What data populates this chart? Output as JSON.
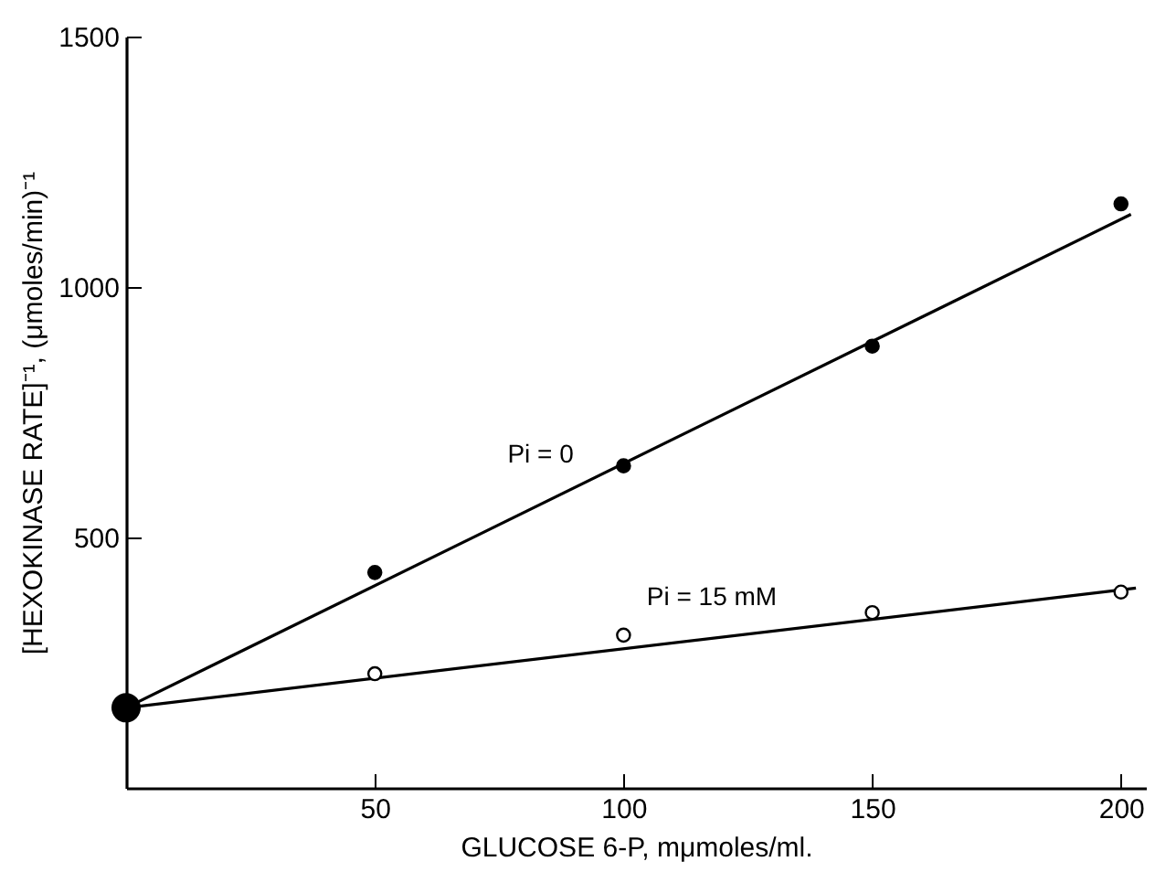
{
  "chart_data": {
    "type": "scatter",
    "xlabel": "GLUCOSE 6-P, mμmoles/ml.",
    "ylabel": "[HEXOKINASE RATE]⁻¹, (μmoles/min)⁻¹",
    "xlim": [
      0,
      205
    ],
    "ylim": [
      0,
      1500
    ],
    "xticks": [
      50,
      100,
      150,
      200
    ],
    "yticks": [
      500,
      {
        "value": 1000,
        "label": "1000"
      },
      {
        "value": 1500,
        "label": "1500"
      }
    ],
    "grid": false,
    "legend": false,
    "series": [
      {
        "type": "line",
        "name": "Pi = 0",
        "color": "#000000",
        "marker": "none",
        "x": [
          0,
          202
        ],
        "values": [
          160,
          1145
        ]
      },
      {
        "type": "line",
        "name": "Pi = 15 mM",
        "color": "#000000",
        "marker": "none",
        "x": [
          0,
          203
        ],
        "values": [
          160,
          399
        ]
      },
      {
        "color": "#000000",
        "marker": "circle",
        "x": [
          50,
          100,
          150,
          200
        ],
        "values": [
          430,
          643,
          882,
          1166
        ]
      },
      {
        "color": "#ffffff",
        "marker": "circle",
        "x": [
          50,
          100,
          150,
          200
        ],
        "values": [
          228,
          305,
          350,
          391
        ]
      },
      {
        "color": "#000000",
        "marker": "circle",
        "x": [
          0
        ],
        "values": [
          160
        ]
      }
    ]
  }
}
